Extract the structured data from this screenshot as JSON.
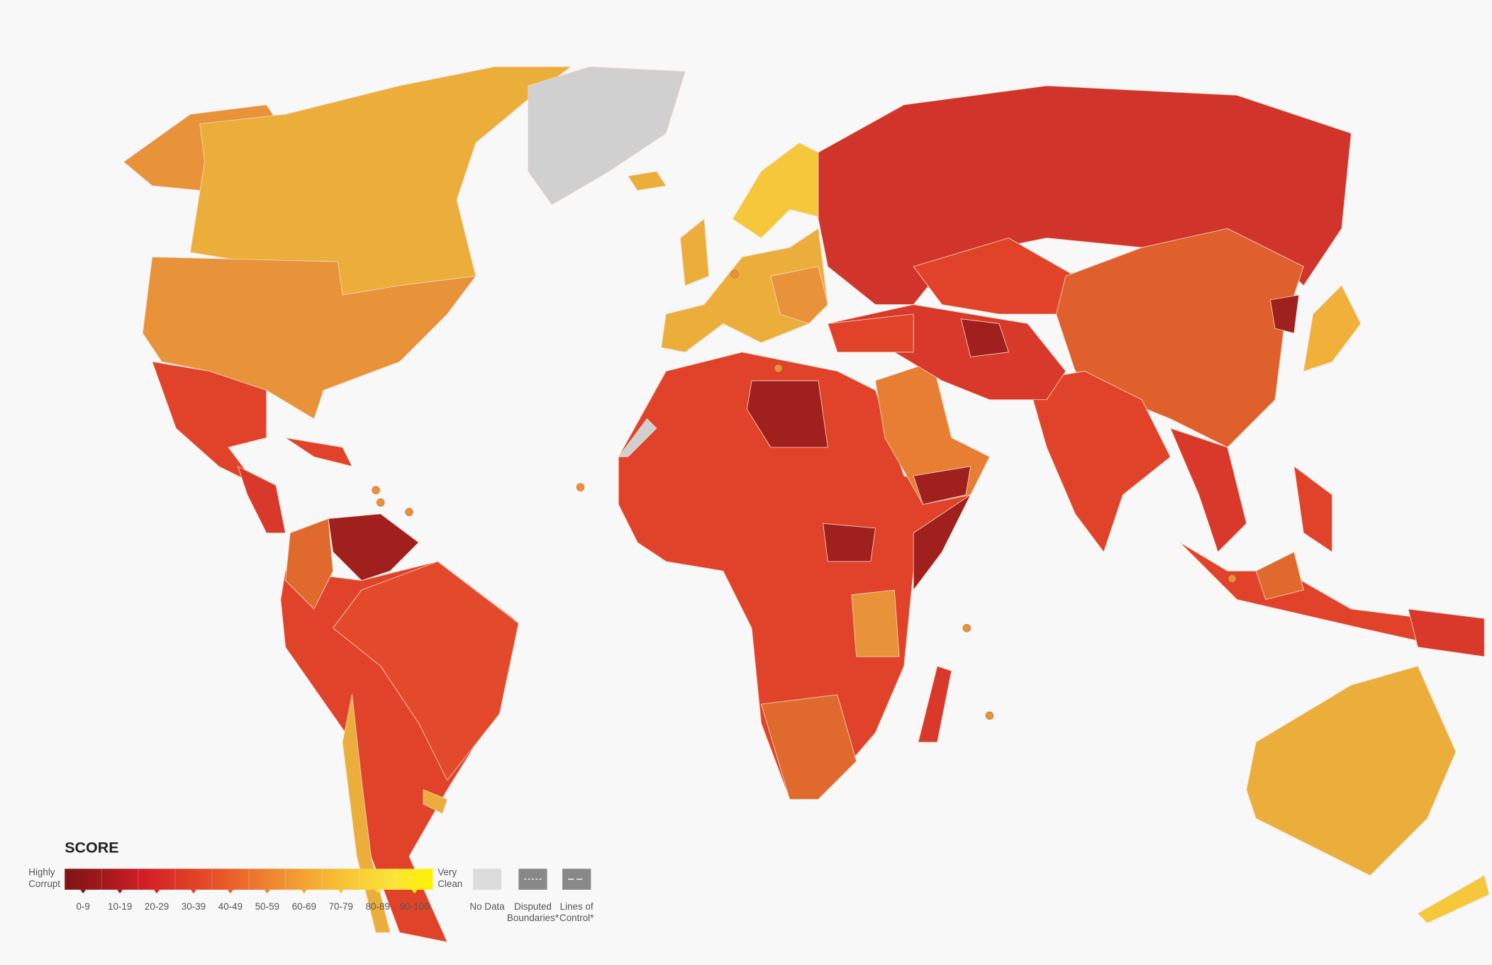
{
  "legend": {
    "title": "SCORE",
    "low_label": [
      "Highly",
      "Corrupt"
    ],
    "high_label": [
      "Very",
      "Clean"
    ],
    "bins": [
      {
        "label": "0-9",
        "color": "#7f1416"
      },
      {
        "label": "10-19",
        "color": "#a3191c"
      },
      {
        "label": "20-29",
        "color": "#d41f26"
      },
      {
        "label": "30-39",
        "color": "#e03d28"
      },
      {
        "label": "40-49",
        "color": "#ea5c2b"
      },
      {
        "label": "50-59",
        "color": "#ef8430"
      },
      {
        "label": "60-69",
        "color": "#f4a834"
      },
      {
        "label": "70-79",
        "color": "#f8c837"
      },
      {
        "label": "80-89",
        "color": "#fbe33a"
      },
      {
        "label": "90-100",
        "color": "#fff200"
      }
    ],
    "no_data": {
      "label": "No Data",
      "color": "#dcdcdc"
    },
    "disputed": {
      "label": [
        "Disputed",
        "Boundaries*"
      ]
    },
    "lines_of_control": {
      "label": [
        "Lines of",
        "Control*"
      ]
    }
  }
}
